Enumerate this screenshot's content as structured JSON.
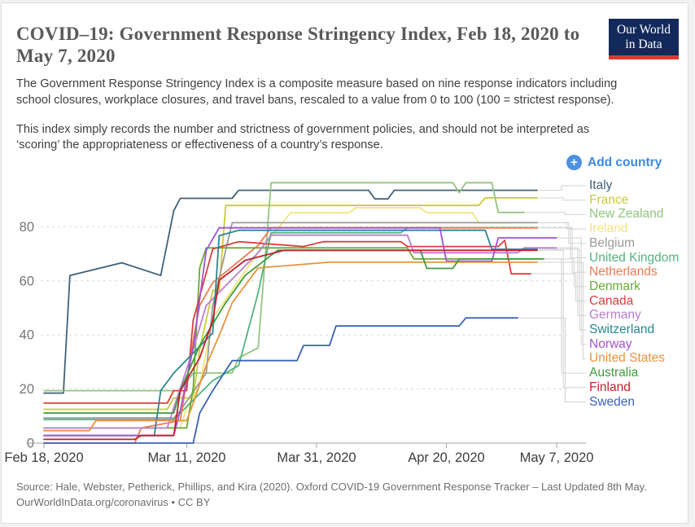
{
  "header": {
    "title": "COVID–19: Government Response Stringency Index, Feb 18, 2020 to May 7, 2020",
    "description_1": "The Government Response Stringency Index is a composite measure based on nine response indicators including school closures, workplace closures, and travel bans, rescaled to a value from 0 to 100 (100 = strictest response).",
    "description_2": "This index simply records the number and strictness of government policies, and should not be interpreted as ‘scoring’ the appropriateness or effectiveness of a country’s response."
  },
  "logo": {
    "line1": "Our World",
    "line2": "in Data",
    "bg_color": "#13295c",
    "bar_color": "#dc3a32"
  },
  "controls": {
    "add_country_label": "Add country",
    "accent_color": "#3d8be2"
  },
  "footer": {
    "source_line": "Source: Hale, Webster, Petherick, Phillips, and Kira (2020). Oxford COVID-19 Government Response Tracker – Last Updated 8th May.",
    "link_line": "OurWorldInData.org/coronavirus • CC BY"
  },
  "chart_data": {
    "type": "line",
    "title": "COVID–19: Government Response Stringency Index, Feb 18, 2020 to May 7, 2020",
    "x_unit": "days since Feb 18, 2020",
    "x_axis": {
      "range_days": [
        0,
        79
      ],
      "ticks": [
        {
          "day": 0,
          "label": "Feb 18, 2020"
        },
        {
          "day": 22,
          "label": "Mar 11, 2020"
        },
        {
          "day": 42,
          "label": "Mar 31, 2020"
        },
        {
          "day": 62,
          "label": "Apr 20, 2020"
        },
        {
          "day": 79,
          "label": "May 7, 2020"
        }
      ]
    },
    "y_axis": {
      "ticks": [
        0,
        20,
        40,
        60,
        80
      ],
      "range": [
        0,
        97
      ],
      "grid": true
    },
    "legend_position": "right",
    "series": [
      {
        "name": "Italy",
        "color": "#40617a",
        "points": [
          [
            0,
            18.5
          ],
          [
            3,
            18.5
          ],
          [
            4,
            62.0
          ],
          [
            12,
            66.7
          ],
          [
            18,
            62.0
          ],
          [
            20,
            85.9
          ],
          [
            21,
            90.5
          ],
          [
            29,
            90.5
          ],
          [
            30,
            93.5
          ],
          [
            50,
            93.5
          ],
          [
            51,
            90.3
          ],
          [
            53,
            90.3
          ],
          [
            54,
            93.5
          ],
          [
            76,
            93.5
          ]
        ]
      },
      {
        "name": "France",
        "color": "#c9cc34",
        "points": [
          [
            0,
            12.5
          ],
          [
            19,
            12.5
          ],
          [
            20,
            16.7
          ],
          [
            23,
            16.7
          ],
          [
            24,
            34.7
          ],
          [
            26,
            56.5
          ],
          [
            27,
            56.5
          ],
          [
            28,
            87.9
          ],
          [
            67,
            87.9
          ],
          [
            68,
            90.7
          ],
          [
            76,
            90.7
          ]
        ]
      },
      {
        "name": "New Zealand",
        "color": "#92c57f",
        "points": [
          [
            0,
            19.4
          ],
          [
            21,
            19.4
          ],
          [
            23,
            25.9
          ],
          [
            29,
            25.9
          ],
          [
            30,
            31.5
          ],
          [
            33,
            35.2
          ],
          [
            35,
            96.3
          ],
          [
            63,
            96.3
          ],
          [
            64,
            92.6
          ],
          [
            65,
            96.3
          ],
          [
            69,
            96.3
          ],
          [
            70,
            85.3
          ],
          [
            74,
            85.3
          ]
        ]
      },
      {
        "name": "Ireland",
        "color": "#f2e57c",
        "points": [
          [
            0,
            5.6
          ],
          [
            21,
            5.6
          ],
          [
            22,
            13.0
          ],
          [
            24,
            21.3
          ],
          [
            26,
            46.3
          ],
          [
            33,
            70.4
          ],
          [
            38,
            85.2
          ],
          [
            47,
            85.2
          ],
          [
            48,
            87.0
          ],
          [
            58,
            87.0
          ],
          [
            59,
            85.2
          ],
          [
            66,
            85.2
          ],
          [
            67,
            81.5
          ],
          [
            72,
            81.5
          ]
        ]
      },
      {
        "name": "Belgium",
        "color": "#9a9a9a",
        "points": [
          [
            0,
            9.3
          ],
          [
            20,
            9.3
          ],
          [
            21,
            12.0
          ],
          [
            25,
            25.9
          ],
          [
            26,
            50.9
          ],
          [
            29,
            81.5
          ],
          [
            76,
            81.5
          ]
        ]
      },
      {
        "name": "United Kingdom",
        "color": "#50b47e",
        "points": [
          [
            0,
            8.7
          ],
          [
            20,
            8.7
          ],
          [
            21,
            11.1
          ],
          [
            26,
            23.1
          ],
          [
            30,
            28.7
          ],
          [
            33,
            55.6
          ],
          [
            35,
            77.8
          ],
          [
            55,
            77.8
          ],
          [
            56,
            79.6
          ],
          [
            76,
            79.6
          ]
        ]
      },
      {
        "name": "Netherlands",
        "color": "#ed7a51",
        "points": [
          [
            0,
            0.0
          ],
          [
            14,
            0.0
          ],
          [
            15,
            5.6
          ],
          [
            21,
            8.3
          ],
          [
            23,
            38.0
          ],
          [
            24,
            50.9
          ],
          [
            26,
            59.3
          ],
          [
            33,
            73.1
          ],
          [
            35,
            79.6
          ],
          [
            76,
            79.6
          ]
        ]
      },
      {
        "name": "Denmark",
        "color": "#66ab35",
        "points": [
          [
            0,
            5.6
          ],
          [
            22,
            5.6
          ],
          [
            23,
            20.4
          ],
          [
            24,
            64.8
          ],
          [
            25,
            72.2
          ],
          [
            56,
            72.2
          ],
          [
            57,
            68.1
          ],
          [
            76,
            68.1
          ]
        ]
      },
      {
        "name": "Canada",
        "color": "#dc3e3e",
        "points": [
          [
            0,
            14.8
          ],
          [
            19,
            14.8
          ],
          [
            20,
            19.4
          ],
          [
            22,
            19.4
          ],
          [
            23,
            45.4
          ],
          [
            26,
            71.8
          ],
          [
            30,
            74.5
          ],
          [
            40,
            72.7
          ],
          [
            43,
            74.5
          ],
          [
            55,
            74.5
          ],
          [
            56,
            72.7
          ],
          [
            70,
            72.7
          ],
          [
            71,
            75.0
          ],
          [
            72,
            62.6
          ],
          [
            75,
            62.6
          ]
        ]
      },
      {
        "name": "Germany",
        "color": "#b97ed3",
        "points": [
          [
            0,
            5.6
          ],
          [
            19,
            5.6
          ],
          [
            20,
            13.0
          ],
          [
            23,
            34.7
          ],
          [
            25,
            50.9
          ],
          [
            33,
            70.4
          ],
          [
            35,
            76.9
          ],
          [
            56,
            76.9
          ],
          [
            57,
            70.4
          ],
          [
            73,
            70.4
          ],
          [
            74,
            72.2
          ],
          [
            79,
            72.2
          ]
        ]
      },
      {
        "name": "Switzerland",
        "color": "#2a8693",
        "points": [
          [
            0,
            2.8
          ],
          [
            17,
            2.8
          ],
          [
            18,
            19.4
          ],
          [
            20,
            25.9
          ],
          [
            26,
            40.7
          ],
          [
            27,
            76.7
          ],
          [
            30,
            78.7
          ],
          [
            68,
            78.7
          ],
          [
            69,
            71.7
          ],
          [
            76,
            71.7
          ]
        ]
      },
      {
        "name": "Norway",
        "color": "#a352d1",
        "points": [
          [
            0,
            2.8
          ],
          [
            20,
            2.8
          ],
          [
            21,
            12.0
          ],
          [
            23,
            35.2
          ],
          [
            25,
            71.3
          ],
          [
            27,
            79.6
          ],
          [
            61,
            79.6
          ],
          [
            62,
            67.3
          ],
          [
            69,
            67.3
          ],
          [
            70,
            75.9
          ],
          [
            79,
            75.9
          ]
        ]
      },
      {
        "name": "United States",
        "color": "#e9933b",
        "points": [
          [
            0,
            4.6
          ],
          [
            7,
            4.6
          ],
          [
            8,
            8.3
          ],
          [
            22,
            8.3
          ],
          [
            23,
            14.8
          ],
          [
            25,
            28.7
          ],
          [
            27,
            39.8
          ],
          [
            29,
            51.9
          ],
          [
            33,
            64.8
          ],
          [
            44,
            66.9
          ],
          [
            76,
            66.9
          ]
        ]
      },
      {
        "name": "Australia",
        "color": "#3e9c3c",
        "points": [
          [
            0,
            11.1
          ],
          [
            20,
            11.1
          ],
          [
            21,
            19.4
          ],
          [
            24,
            36.1
          ],
          [
            28,
            51.9
          ],
          [
            31,
            62.0
          ],
          [
            36,
            71.3
          ],
          [
            58,
            71.3
          ],
          [
            59,
            64.6
          ],
          [
            63,
            64.6
          ],
          [
            64,
            68.1
          ],
          [
            77,
            68.1
          ]
        ]
      },
      {
        "name": "Finland",
        "color": "#c2202e",
        "points": [
          [
            0,
            1.4
          ],
          [
            14,
            1.4
          ],
          [
            15,
            2.8
          ],
          [
            20,
            2.8
          ],
          [
            21,
            19.4
          ],
          [
            24,
            31.5
          ],
          [
            26,
            45.4
          ],
          [
            27,
            60.2
          ],
          [
            31,
            67.6
          ],
          [
            37,
            71.3
          ],
          [
            76,
            71.3
          ]
        ]
      },
      {
        "name": "Sweden",
        "color": "#3b62bb",
        "points": [
          [
            0,
            0.0
          ],
          [
            23,
            0.0
          ],
          [
            24,
            11.1
          ],
          [
            26,
            19.4
          ],
          [
            29,
            30.5
          ],
          [
            39,
            30.5
          ],
          [
            40,
            36.1
          ],
          [
            44,
            36.1
          ],
          [
            45,
            43.3
          ],
          [
            64,
            43.3
          ],
          [
            65,
            46.3
          ],
          [
            73,
            46.3
          ]
        ]
      }
    ]
  }
}
